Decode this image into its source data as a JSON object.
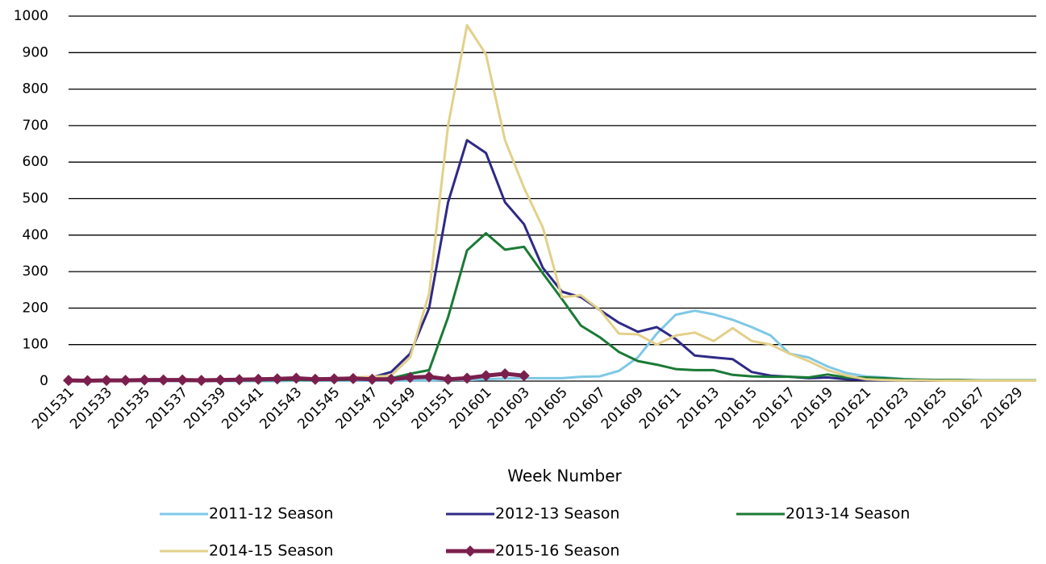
{
  "chart_data": {
    "type": "line",
    "x_label": "Week Number",
    "categories": [
      "201531",
      null,
      "201533",
      null,
      "201535",
      null,
      "201537",
      null,
      "201539",
      null,
      "201541",
      null,
      "201543",
      null,
      "201545",
      null,
      "201547",
      null,
      "201549",
      null,
      "201551",
      null,
      "201601",
      null,
      "201603",
      null,
      "201605",
      null,
      "201607",
      null,
      "201609",
      null,
      "201611",
      null,
      "201613",
      null,
      "201615",
      null,
      "201617",
      null,
      "201619",
      null,
      "201621",
      null,
      "201623",
      null,
      "201625",
      null,
      "201627",
      null,
      "201629",
      null
    ],
    "ylim": [
      0,
      1000
    ],
    "yticks": [
      0,
      100,
      200,
      300,
      400,
      500,
      600,
      700,
      800,
      900,
      1000
    ],
    "grid": true,
    "legend": "bottom",
    "series": [
      {
        "name": "2011-12 Season",
        "color": "#7ec8e6",
        "values": [
          0,
          0,
          0,
          0,
          0,
          0,
          0,
          0,
          0,
          0,
          0,
          0,
          1,
          1,
          1,
          1,
          1,
          1,
          2,
          2,
          3,
          3,
          5,
          7,
          8,
          8,
          8,
          12,
          13,
          28,
          65,
          130,
          182,
          193,
          183,
          168,
          148,
          125,
          75,
          65,
          40,
          22,
          13,
          10,
          6,
          4,
          3,
          2,
          2,
          1,
          1,
          1
        ]
      },
      {
        "name": "2012-13 Season",
        "color": "#2e2a86",
        "values": [
          1,
          1,
          1,
          1,
          2,
          2,
          2,
          2,
          2,
          3,
          3,
          3,
          4,
          4,
          5,
          6,
          10,
          25,
          75,
          200,
          490,
          660,
          625,
          490,
          430,
          310,
          245,
          230,
          195,
          160,
          135,
          148,
          115,
          70,
          65,
          60,
          25,
          15,
          12,
          8,
          10,
          5,
          3,
          2,
          2,
          1,
          1,
          1,
          1,
          1,
          1,
          1
        ]
      },
      {
        "name": "2013-14 Season",
        "color": "#1a7a36",
        "values": [
          1,
          1,
          1,
          1,
          1,
          1,
          2,
          2,
          2,
          2,
          2,
          3,
          3,
          3,
          3,
          4,
          5,
          8,
          20,
          30,
          175,
          358,
          405,
          360,
          368,
          295,
          225,
          152,
          120,
          80,
          55,
          45,
          33,
          30,
          30,
          17,
          13,
          12,
          12,
          10,
          18,
          10,
          10,
          8,
          5,
          4,
          3,
          3,
          2,
          2,
          2,
          2
        ]
      },
      {
        "name": "2014-15 Season",
        "color": "#e3d08a",
        "values": [
          2,
          2,
          3,
          3,
          4,
          4,
          5,
          5,
          5,
          6,
          6,
          7,
          8,
          7,
          8,
          10,
          12,
          15,
          65,
          240,
          700,
          975,
          895,
          660,
          530,
          420,
          230,
          235,
          195,
          130,
          128,
          100,
          125,
          133,
          110,
          145,
          110,
          100,
          75,
          55,
          30,
          15,
          5,
          3,
          2,
          2,
          1,
          1,
          1,
          1,
          1,
          1
        ]
      },
      {
        "name": "2015-16 Season",
        "color": "#7a1f4e",
        "marker": "diamond",
        "values": [
          2,
          1,
          2,
          2,
          3,
          3,
          3,
          2,
          3,
          4,
          5,
          6,
          8,
          5,
          6,
          7,
          5,
          5,
          10,
          12,
          5,
          8,
          15,
          20,
          15,
          null,
          null,
          null,
          null,
          null,
          null,
          null,
          null,
          null,
          null,
          null,
          null,
          null,
          null,
          null,
          null,
          null,
          null,
          null,
          null,
          null,
          null,
          null,
          null,
          null,
          null,
          null
        ]
      }
    ]
  }
}
